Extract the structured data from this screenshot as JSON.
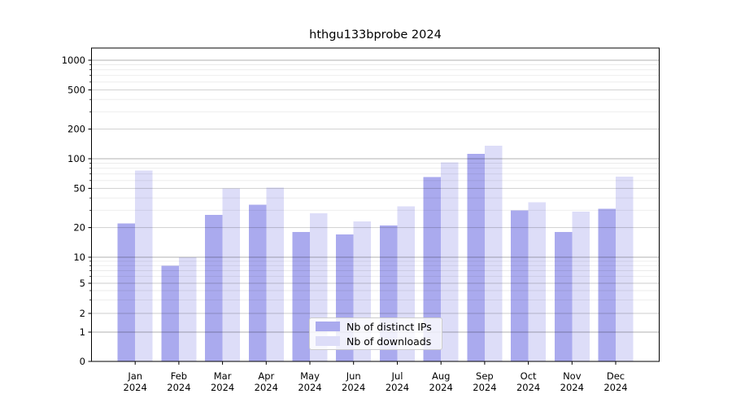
{
  "chart_data": {
    "type": "bar",
    "title": "hthgu133bprobe 2024",
    "categories": [
      "Jan 2024",
      "Feb 2024",
      "Mar 2024",
      "Apr 2024",
      "May 2024",
      "Jun 2024",
      "Jul 2024",
      "Aug 2024",
      "Sep 2024",
      "Oct 2024",
      "Nov 2024",
      "Dec 2024"
    ],
    "series": [
      {
        "name": "Nb of distinct IPs",
        "color": "#aaaaee",
        "values": [
          22,
          8,
          27,
          34,
          18,
          17,
          21,
          65,
          112,
          30,
          18,
          31
        ]
      },
      {
        "name": "Nb of downloads",
        "color": "#ddddf8",
        "values": [
          76,
          10,
          50,
          51,
          28,
          23,
          33,
          92,
          135,
          36,
          29,
          66
        ]
      }
    ],
    "yscale": "symlog",
    "y_ticks": [
      0,
      1,
      2,
      5,
      10,
      20,
      50,
      100,
      200,
      500,
      1000
    ],
    "ylim": [
      0,
      1330
    ],
    "grid": true,
    "legend_position": "lower center",
    "background": "#ffffff",
    "axis_color": "#000000"
  }
}
